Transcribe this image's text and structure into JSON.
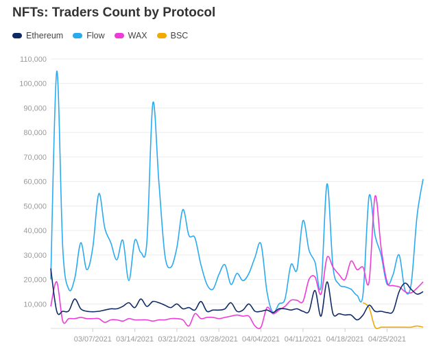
{
  "chart_data": {
    "type": "line",
    "title": "NFTs: Traders Count by Protocol",
    "xlabel": "",
    "ylabel": "",
    "ylim": [
      0,
      110000
    ],
    "y_ticks": [
      10000,
      20000,
      30000,
      40000,
      50000,
      60000,
      70000,
      80000,
      90000,
      100000,
      110000
    ],
    "y_tick_labels": [
      "10,000",
      "20,000",
      "30,000",
      "40,000",
      "50,000",
      "60,000",
      "70,000",
      "80,000",
      "90,000",
      "100,000",
      "110,000"
    ],
    "x_start": "02/28/2021",
    "x_end": "05/01/2021",
    "x_ticks": [
      "03/07/2021",
      "03/14/2021",
      "03/21/2021",
      "03/28/2021",
      "04/04/2021",
      "04/11/2021",
      "04/18/2021",
      "04/25/2021"
    ],
    "grid": "horizontal",
    "legend_position": "top-left",
    "series": [
      {
        "name": "Ethereum",
        "color": "#0e2a66",
        "points": [
          [
            "02/28/2021",
            24500
          ],
          [
            "03/01/2021",
            7000
          ],
          [
            "03/02/2021",
            7000
          ],
          [
            "03/03/2021",
            7200
          ],
          [
            "03/04/2021",
            12000
          ],
          [
            "03/05/2021",
            8000
          ],
          [
            "03/06/2021",
            7000
          ],
          [
            "03/07/2021",
            6800
          ],
          [
            "03/08/2021",
            7000
          ],
          [
            "03/09/2021",
            7500
          ],
          [
            "03/10/2021",
            8000
          ],
          [
            "03/11/2021",
            8000
          ],
          [
            "03/12/2021",
            9000
          ],
          [
            "03/13/2021",
            10500
          ],
          [
            "03/14/2021",
            8500
          ],
          [
            "03/15/2021",
            12000
          ],
          [
            "03/16/2021",
            9000
          ],
          [
            "03/17/2021",
            11000
          ],
          [
            "03/18/2021",
            10500
          ],
          [
            "03/19/2021",
            9500
          ],
          [
            "03/20/2021",
            8500
          ],
          [
            "03/21/2021",
            10000
          ],
          [
            "03/22/2021",
            8000
          ],
          [
            "03/23/2021",
            8500
          ],
          [
            "03/24/2021",
            7500
          ],
          [
            "03/25/2021",
            11000
          ],
          [
            "03/26/2021",
            7000
          ],
          [
            "03/27/2021",
            7500
          ],
          [
            "03/28/2021",
            7500
          ],
          [
            "03/29/2021",
            8000
          ],
          [
            "03/30/2021",
            10500
          ],
          [
            "03/31/2021",
            7000
          ],
          [
            "04/01/2021",
            7500
          ],
          [
            "04/02/2021",
            10000
          ],
          [
            "04/03/2021",
            7000
          ],
          [
            "04/04/2021",
            7000
          ],
          [
            "04/05/2021",
            7500
          ],
          [
            "04/06/2021",
            6500
          ],
          [
            "04/07/2021",
            8000
          ],
          [
            "04/08/2021",
            8000
          ],
          [
            "04/09/2021",
            7500
          ],
          [
            "04/10/2021",
            8000
          ],
          [
            "04/11/2021",
            7000
          ],
          [
            "04/12/2021",
            7000
          ],
          [
            "04/13/2021",
            15500
          ],
          [
            "04/14/2021",
            5000
          ],
          [
            "04/15/2021",
            19000
          ],
          [
            "04/16/2021",
            6000
          ],
          [
            "04/17/2021",
            6000
          ],
          [
            "04/18/2021",
            5500
          ],
          [
            "04/19/2021",
            5500
          ],
          [
            "04/20/2021",
            3500
          ],
          [
            "04/21/2021",
            5500
          ],
          [
            "04/22/2021",
            9500
          ],
          [
            "04/23/2021",
            7000
          ],
          [
            "04/24/2021",
            7000
          ],
          [
            "04/25/2021",
            6500
          ],
          [
            "04/26/2021",
            7000
          ],
          [
            "04/27/2021",
            15000
          ],
          [
            "04/28/2021",
            18500
          ],
          [
            "04/29/2021",
            16000
          ],
          [
            "04/30/2021",
            14000
          ],
          [
            "05/01/2021",
            15000
          ]
        ]
      },
      {
        "name": "Flow",
        "color": "#29aaf0",
        "points": [
          [
            "02/28/2021",
            20000
          ],
          [
            "03/01/2021",
            105000
          ],
          [
            "03/02/2021",
            33000
          ],
          [
            "03/03/2021",
            16000
          ],
          [
            "03/04/2021",
            20500
          ],
          [
            "03/05/2021",
            35000
          ],
          [
            "03/06/2021",
            24000
          ],
          [
            "03/07/2021",
            33000
          ],
          [
            "03/08/2021",
            55000
          ],
          [
            "03/09/2021",
            41000
          ],
          [
            "03/10/2021",
            35000
          ],
          [
            "03/11/2021",
            28000
          ],
          [
            "03/12/2021",
            36000
          ],
          [
            "03/13/2021",
            19500
          ],
          [
            "03/14/2021",
            36000
          ],
          [
            "03/15/2021",
            31000
          ],
          [
            "03/16/2021",
            35000
          ],
          [
            "03/17/2021",
            92000
          ],
          [
            "03/18/2021",
            60000
          ],
          [
            "03/19/2021",
            30000
          ],
          [
            "03/20/2021",
            25000
          ],
          [
            "03/21/2021",
            33000
          ],
          [
            "03/22/2021",
            48500
          ],
          [
            "03/23/2021",
            38000
          ],
          [
            "03/24/2021",
            37000
          ],
          [
            "03/25/2021",
            26000
          ],
          [
            "03/26/2021",
            18000
          ],
          [
            "03/27/2021",
            16000
          ],
          [
            "03/28/2021",
            22000
          ],
          [
            "03/29/2021",
            26000
          ],
          [
            "03/30/2021",
            18000
          ],
          [
            "03/31/2021",
            22500
          ],
          [
            "04/01/2021",
            19500
          ],
          [
            "04/02/2021",
            22500
          ],
          [
            "04/03/2021",
            29000
          ],
          [
            "04/04/2021",
            34500
          ],
          [
            "04/05/2021",
            15000
          ],
          [
            "04/06/2021",
            6500
          ],
          [
            "04/07/2021",
            10000
          ],
          [
            "04/08/2021",
            12000
          ],
          [
            "04/09/2021",
            26000
          ],
          [
            "04/10/2021",
            24000
          ],
          [
            "04/11/2021",
            44000
          ],
          [
            "04/12/2021",
            32000
          ],
          [
            "04/13/2021",
            27000
          ],
          [
            "04/14/2021",
            17000
          ],
          [
            "04/15/2021",
            59000
          ],
          [
            "04/16/2021",
            25000
          ],
          [
            "04/17/2021",
            18000
          ],
          [
            "04/18/2021",
            17000
          ],
          [
            "04/19/2021",
            16000
          ],
          [
            "04/20/2021",
            13500
          ],
          [
            "04/21/2021",
            14000
          ],
          [
            "04/22/2021",
            54000
          ],
          [
            "04/23/2021",
            38000
          ],
          [
            "04/24/2021",
            30000
          ],
          [
            "04/25/2021",
            18000
          ],
          [
            "04/26/2021",
            22000
          ],
          [
            "04/27/2021",
            30000
          ],
          [
            "04/28/2021",
            15500
          ],
          [
            "04/29/2021",
            18000
          ],
          [
            "04/30/2021",
            46000
          ],
          [
            "05/01/2021",
            61000
          ]
        ]
      },
      {
        "name": "WAX",
        "color": "#ee3ad8",
        "points": [
          [
            "02/28/2021",
            9000
          ],
          [
            "03/01/2021",
            19000
          ],
          [
            "03/02/2021",
            3000
          ],
          [
            "03/03/2021",
            4000
          ],
          [
            "03/04/2021",
            4000
          ],
          [
            "03/05/2021",
            4500
          ],
          [
            "03/06/2021",
            4000
          ],
          [
            "03/07/2021",
            4000
          ],
          [
            "03/08/2021",
            4000
          ],
          [
            "03/09/2021",
            2500
          ],
          [
            "03/10/2021",
            3500
          ],
          [
            "03/11/2021",
            3500
          ],
          [
            "03/12/2021",
            3000
          ],
          [
            "03/13/2021",
            4000
          ],
          [
            "03/14/2021",
            3500
          ],
          [
            "03/15/2021",
            3500
          ],
          [
            "03/16/2021",
            3500
          ],
          [
            "03/17/2021",
            3000
          ],
          [
            "03/18/2021",
            3500
          ],
          [
            "03/19/2021",
            3500
          ],
          [
            "03/20/2021",
            4000
          ],
          [
            "03/21/2021",
            4000
          ],
          [
            "03/22/2021",
            3500
          ],
          [
            "03/23/2021",
            1000
          ],
          [
            "03/24/2021",
            6000
          ],
          [
            "03/25/2021",
            4000
          ],
          [
            "03/26/2021",
            4500
          ],
          [
            "03/27/2021",
            4500
          ],
          [
            "03/28/2021",
            4000
          ],
          [
            "03/29/2021",
            4500
          ],
          [
            "03/30/2021",
            5000
          ],
          [
            "03/31/2021",
            5500
          ],
          [
            "04/01/2021",
            5000
          ],
          [
            "04/02/2021",
            5000
          ],
          [
            "04/03/2021",
            1000
          ],
          [
            "04/04/2021",
            500
          ],
          [
            "04/05/2021",
            8500
          ],
          [
            "04/06/2021",
            6000
          ],
          [
            "04/07/2021",
            7500
          ],
          [
            "04/08/2021",
            9000
          ],
          [
            "04/09/2021",
            11500
          ],
          [
            "04/10/2021",
            11500
          ],
          [
            "04/11/2021",
            11000
          ],
          [
            "04/12/2021",
            20000
          ],
          [
            "04/13/2021",
            21000
          ],
          [
            "04/14/2021",
            14000
          ],
          [
            "04/15/2021",
            29000
          ],
          [
            "04/16/2021",
            25000
          ],
          [
            "04/17/2021",
            22000
          ],
          [
            "04/18/2021",
            20000
          ],
          [
            "04/19/2021",
            27500
          ],
          [
            "04/20/2021",
            24000
          ],
          [
            "04/21/2021",
            25000
          ],
          [
            "04/22/2021",
            19000
          ],
          [
            "04/23/2021",
            54000
          ],
          [
            "04/24/2021",
            33000
          ],
          [
            "04/25/2021",
            19000
          ],
          [
            "04/26/2021",
            17500
          ],
          [
            "04/27/2021",
            17000
          ],
          [
            "04/28/2021",
            15000
          ],
          [
            "04/29/2021",
            14500
          ],
          [
            "04/30/2021",
            16500
          ],
          [
            "05/01/2021",
            19000
          ]
        ]
      },
      {
        "name": "BSC",
        "color": "#f2a900",
        "points": [
          [
            "04/21/2021",
            10500
          ],
          [
            "04/22/2021",
            8500
          ],
          [
            "04/23/2021",
            500
          ],
          [
            "04/24/2021",
            500
          ],
          [
            "04/25/2021",
            500
          ],
          [
            "04/26/2021",
            500
          ],
          [
            "04/27/2021",
            500
          ],
          [
            "04/28/2021",
            500
          ],
          [
            "04/29/2021",
            500
          ],
          [
            "04/30/2021",
            1000
          ],
          [
            "05/01/2021",
            500
          ]
        ]
      }
    ]
  }
}
